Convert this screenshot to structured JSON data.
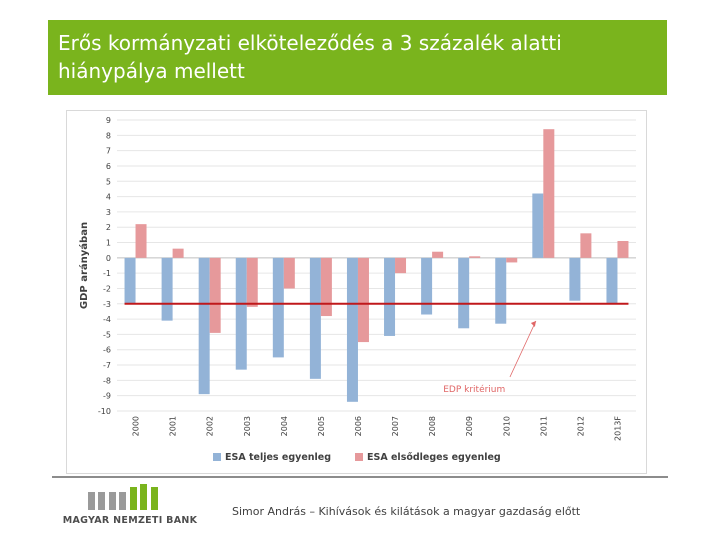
{
  "slide": {
    "title": "Erős kormányzati elköteleződés a 3 százalék alatti\nhiánypálya mellett",
    "footer_caption": "Simor András – Kihívások és kilátások a magyar gazdaság előtt",
    "logo_text": "MAGYAR NEMZETI BANK",
    "title_bg_color": "#7ab41d"
  },
  "chart_data": {
    "type": "bar",
    "categories": [
      "2000",
      "2001",
      "2002",
      "2003",
      "2004",
      "2005",
      "2006",
      "2007",
      "2008",
      "2009",
      "2010",
      "2011",
      "2012",
      "2013F"
    ],
    "series": [
      {
        "name": "ESA teljes egyenleg",
        "color": "#93b3d7",
        "values": [
          -3.0,
          -4.1,
          -8.9,
          -7.3,
          -6.5,
          -7.9,
          -9.4,
          -5.1,
          -3.7,
          -4.6,
          -4.3,
          4.2,
          -2.8,
          -3.0
        ]
      },
      {
        "name": "ESA elsődleges egyenleg",
        "color": "#e6999b",
        "values": [
          2.2,
          0.6,
          -4.9,
          -3.2,
          -2.0,
          -3.8,
          -5.5,
          -1.0,
          0.4,
          0.1,
          -0.3,
          8.4,
          1.6,
          1.1
        ]
      }
    ],
    "reference_line": {
      "value": -3,
      "color": "#c0181b",
      "label": "EDP kritérium"
    },
    "ylabel": "GDP arányában",
    "ylim": [
      -10,
      9
    ],
    "yticks": [
      "9",
      "8",
      "7",
      "6",
      "5",
      "4",
      "3",
      "2",
      "1",
      "0",
      "-1",
      "-2",
      "-3",
      "-4",
      "-5",
      "-6",
      "-7",
      "-8",
      "-9",
      "-10"
    ],
    "grid": true,
    "legend_position": "bottom"
  }
}
